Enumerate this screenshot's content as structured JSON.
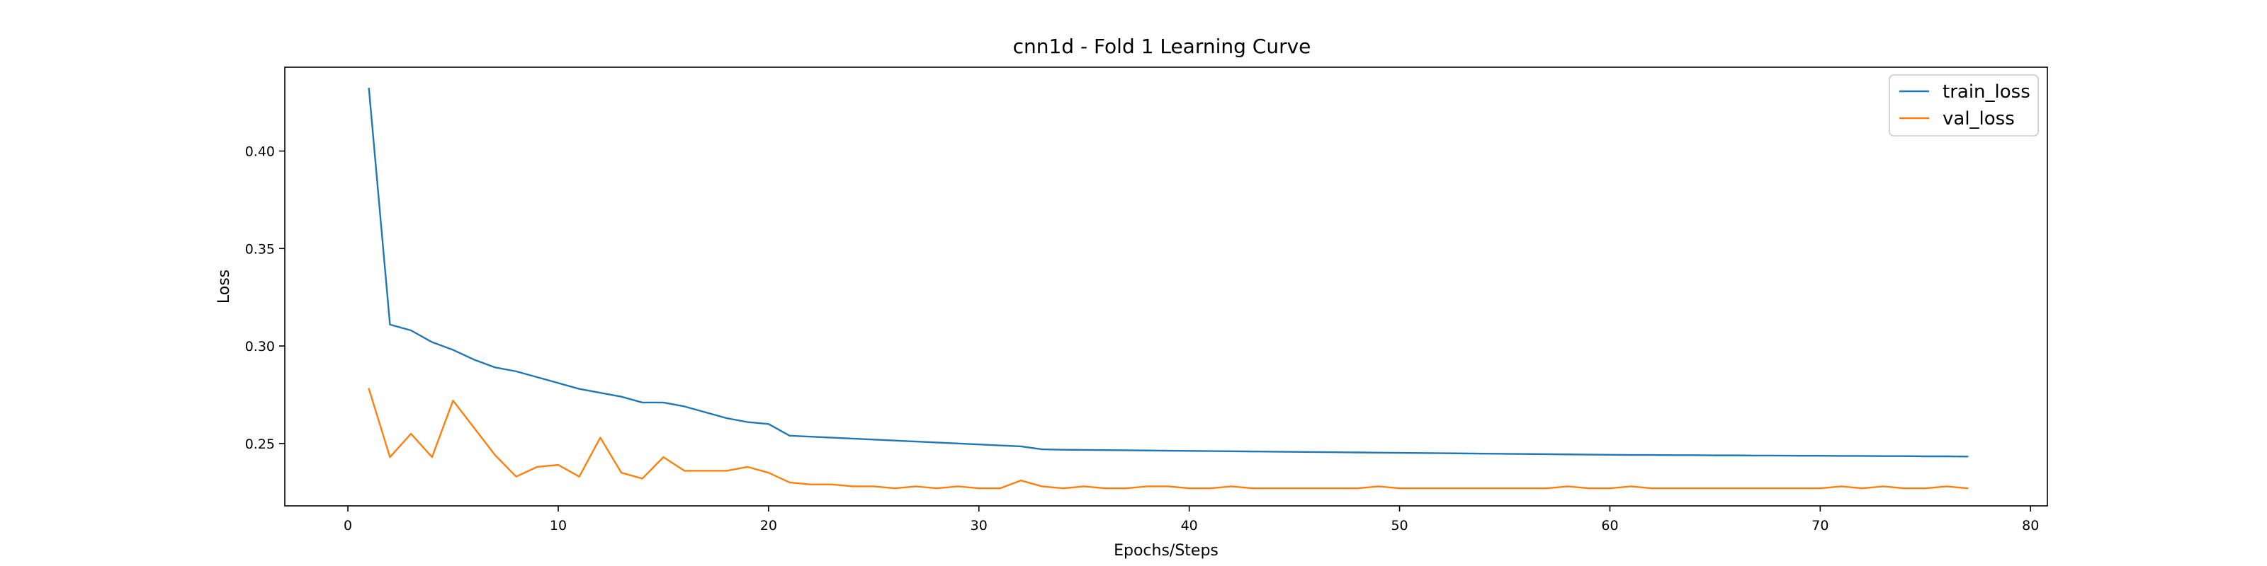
{
  "chart_data": {
    "type": "line",
    "title": "cnn1d - Fold 1 Learning Curve",
    "xlabel": "Epochs/Steps",
    "ylabel": "Loss",
    "xlim": [
      -3,
      80.8
    ],
    "ylim": [
      0.218,
      0.443
    ],
    "xticks": [
      0,
      10,
      20,
      30,
      40,
      50,
      60,
      70,
      80
    ],
    "yticks": [
      0.25,
      0.3,
      0.35,
      0.4
    ],
    "ytick_labels": [
      "0.25",
      "0.30",
      "0.35",
      "0.40"
    ],
    "grid": false,
    "legend": "top-right",
    "x": [
      1,
      2,
      3,
      4,
      5,
      6,
      7,
      8,
      9,
      10,
      11,
      12,
      13,
      14,
      15,
      16,
      17,
      18,
      19,
      20,
      21,
      22,
      23,
      24,
      25,
      26,
      27,
      28,
      29,
      30,
      31,
      32,
      33,
      34,
      35,
      36,
      37,
      38,
      39,
      40,
      41,
      42,
      43,
      44,
      45,
      46,
      47,
      48,
      49,
      50,
      51,
      52,
      53,
      54,
      55,
      56,
      57,
      58,
      59,
      60,
      61,
      62,
      63,
      64,
      65,
      66,
      67,
      68,
      69,
      70,
      71,
      72,
      73,
      74,
      75,
      76,
      77
    ],
    "series": [
      {
        "name": "train_loss",
        "color": "#1f77b4",
        "values": [
          0.432,
          0.311,
          0.308,
          0.302,
          0.298,
          0.293,
          0.289,
          0.287,
          0.284,
          0.281,
          0.278,
          0.276,
          0.274,
          0.271,
          0.271,
          0.269,
          0.266,
          0.263,
          0.261,
          0.26,
          0.254,
          0.2535,
          0.253,
          0.2525,
          0.252,
          0.2515,
          0.251,
          0.2505,
          0.25,
          0.2495,
          0.249,
          0.2485,
          0.247,
          0.2468,
          0.2467,
          0.2466,
          0.2465,
          0.2464,
          0.2463,
          0.2462,
          0.2461,
          0.246,
          0.2459,
          0.2458,
          0.2457,
          0.2456,
          0.2455,
          0.2454,
          0.2453,
          0.2452,
          0.2451,
          0.245,
          0.2449,
          0.2448,
          0.2447,
          0.2446,
          0.2445,
          0.2444,
          0.2443,
          0.2442,
          0.2441,
          0.2441,
          0.244,
          0.244,
          0.2439,
          0.2439,
          0.2438,
          0.2438,
          0.2437,
          0.2437,
          0.2436,
          0.2436,
          0.2435,
          0.2435,
          0.2434,
          0.2434,
          0.2433
        ]
      },
      {
        "name": "val_loss",
        "color": "#ff7f0e",
        "values": [
          0.278,
          0.243,
          0.255,
          0.243,
          0.272,
          0.258,
          0.244,
          0.233,
          0.238,
          0.239,
          0.233,
          0.253,
          0.235,
          0.232,
          0.243,
          0.236,
          0.236,
          0.236,
          0.238,
          0.235,
          0.23,
          0.229,
          0.229,
          0.228,
          0.228,
          0.227,
          0.228,
          0.227,
          0.228,
          0.227,
          0.227,
          0.231,
          0.228,
          0.227,
          0.228,
          0.227,
          0.227,
          0.228,
          0.228,
          0.227,
          0.227,
          0.228,
          0.227,
          0.227,
          0.227,
          0.227,
          0.227,
          0.227,
          0.228,
          0.227,
          0.227,
          0.227,
          0.227,
          0.227,
          0.227,
          0.227,
          0.227,
          0.228,
          0.227,
          0.227,
          0.228,
          0.227,
          0.227,
          0.227,
          0.227,
          0.227,
          0.227,
          0.227,
          0.227,
          0.227,
          0.228,
          0.227,
          0.228,
          0.227,
          0.227,
          0.228,
          0.227
        ]
      }
    ]
  }
}
